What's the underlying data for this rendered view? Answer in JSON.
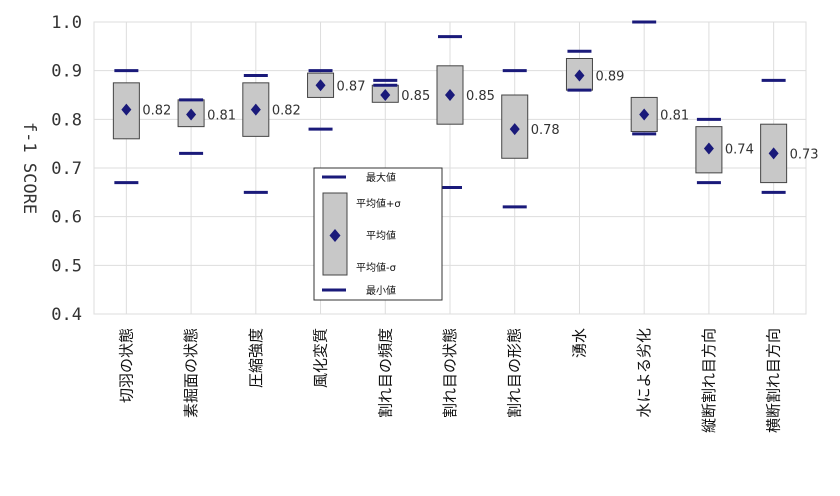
{
  "chart_data": {
    "type": "box",
    "ylabel": "f-1 SCORE",
    "ylim": [
      0.4,
      1.0
    ],
    "yticks": [
      "0.4",
      "0.5",
      "0.6",
      "0.7",
      "0.8",
      "0.9",
      "1.0"
    ],
    "grid": true,
    "colors": {
      "marker": "#1a1a7a",
      "box_fill": "#c8c8c8",
      "box_stroke": "#444444",
      "grid": "#dddddd"
    },
    "categories": [
      "切羽の状態",
      "素掘面の状態",
      "圧縮強度",
      "風化変質",
      "割れ目の頻度",
      "割れ目の状態",
      "割れ目の形態",
      "湧水",
      "水による劣化",
      "縦断割れ目方向",
      "横断割れ目方向"
    ],
    "series": [
      {
        "name": "最大値",
        "values": [
          0.9,
          0.84,
          0.89,
          0.9,
          0.88,
          0.97,
          0.9,
          0.94,
          1.0,
          0.8,
          0.88
        ]
      },
      {
        "name": "平均値+σ",
        "values": [
          0.875,
          0.84,
          0.875,
          0.895,
          0.87,
          0.91,
          0.85,
          0.925,
          0.845,
          0.785,
          0.79
        ]
      },
      {
        "name": "平均値",
        "values": [
          0.82,
          0.81,
          0.82,
          0.87,
          0.85,
          0.85,
          0.78,
          0.89,
          0.81,
          0.74,
          0.73
        ]
      },
      {
        "name": "平均値-σ",
        "values": [
          0.76,
          0.785,
          0.765,
          0.845,
          0.835,
          0.79,
          0.72,
          0.86,
          0.775,
          0.69,
          0.67
        ]
      },
      {
        "name": "最小値",
        "values": [
          0.67,
          0.73,
          0.65,
          0.78,
          0.87,
          0.66,
          0.62,
          0.86,
          0.77,
          0.67,
          0.65
        ]
      }
    ],
    "data_labels": [
      "0.82",
      "0.81",
      "0.82",
      "0.87",
      "0.85",
      "0.85",
      "0.78",
      "0.89",
      "0.81",
      "0.74",
      "0.73"
    ],
    "legend": {
      "placement": "bottom-center",
      "items": [
        "最大値",
        "平均値+σ",
        "平均値",
        "平均値-σ",
        "最小値"
      ]
    }
  }
}
